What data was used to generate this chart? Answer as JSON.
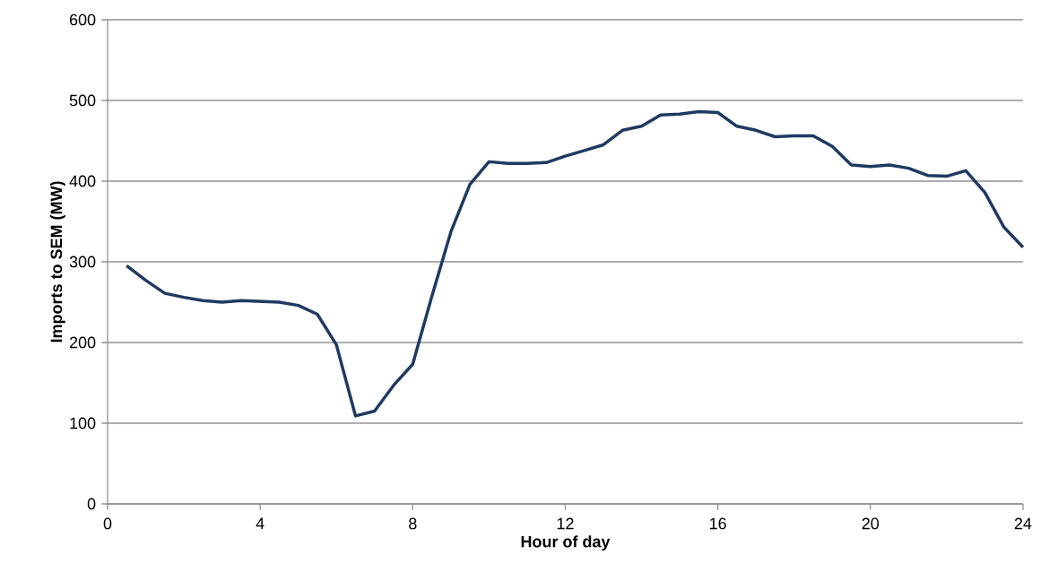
{
  "chart_data": {
    "type": "line",
    "xlabel": "Hour of day",
    "ylabel": "Imports to SEM (MW)",
    "x": [
      0.5,
      1,
      1.5,
      2,
      2.5,
      3,
      3.5,
      4,
      4.5,
      5,
      5.5,
      6,
      6.5,
      7,
      7.5,
      8,
      8.5,
      9,
      9.5,
      10,
      10.5,
      11,
      11.5,
      12,
      12.5,
      13,
      13.5,
      14,
      14.5,
      15,
      15.5,
      16,
      16.5,
      17,
      17.5,
      18,
      18.5,
      19,
      19.5,
      20,
      20.5,
      21,
      21.5,
      22,
      22.5,
      23,
      23.5,
      24
    ],
    "series": [
      {
        "color": "#1f3a60",
        "values": [
          295,
          277,
          261,
          256,
          252,
          250,
          252,
          251,
          250,
          246,
          235,
          197,
          109,
          115,
          147,
          173,
          257,
          337,
          396,
          424,
          422,
          422,
          423,
          431,
          438,
          445,
          463,
          468,
          482,
          483,
          486,
          485,
          468,
          463,
          455,
          456,
          456,
          443,
          420,
          418,
          420,
          416,
          407,
          406,
          413,
          386,
          343,
          318
        ]
      }
    ],
    "xlim": [
      0,
      24
    ],
    "xticks": [
      0,
      4,
      8,
      12,
      16,
      20,
      24
    ],
    "ylim": [
      0,
      600
    ],
    "yticks": [
      0,
      100,
      200,
      300,
      400,
      500,
      600
    ],
    "grid": "y",
    "marker": "none",
    "line_style": "solid"
  }
}
